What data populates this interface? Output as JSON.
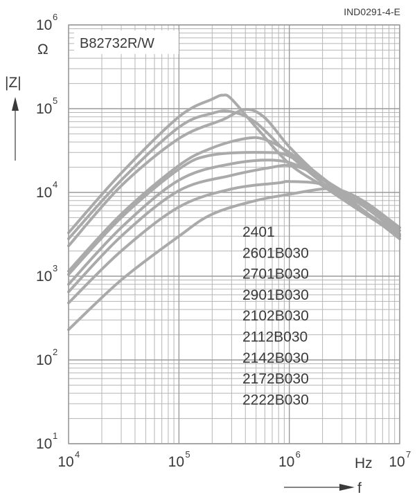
{
  "chart_data": {
    "type": "line",
    "title": "B82732R/W",
    "reference": "IND0291-4-E",
    "x_label": "f",
    "x_unit": "Hz",
    "y_label": "|Z|",
    "y_unit": "Ω",
    "x_scale": "log",
    "y_scale": "log",
    "xlim": [
      10000,
      10000000
    ],
    "ylim": [
      10,
      1000000
    ],
    "grid": true,
    "x_ticks": [
      {
        "base": "10",
        "exp": "4",
        "value": 10000
      },
      {
        "base": "10",
        "exp": "5",
        "value": 100000
      },
      {
        "base": "10",
        "exp": "6",
        "value": 1000000
      },
      {
        "base": "10",
        "exp": "7",
        "value": 10000000
      }
    ],
    "y_ticks": [
      {
        "base": "10",
        "exp": "1",
        "value": 10
      },
      {
        "base": "10",
        "exp": "2",
        "value": 100
      },
      {
        "base": "10",
        "exp": "3",
        "value": 1000
      },
      {
        "base": "10",
        "exp": "4",
        "value": 10000
      },
      {
        "base": "10",
        "exp": "5",
        "value": 100000
      },
      {
        "base": "10",
        "exp": "6",
        "value": 1000000
      }
    ],
    "legend": [
      "2401",
      "2601B030",
      "2701B030",
      "2901B030",
      "2102B030",
      "2112B030",
      "2142B030",
      "2172B030",
      "2222B030"
    ],
    "line_color": "#aaaaaa",
    "grid_color": "#b5b5b5",
    "series": [
      {
        "points": [
          [
            10000,
            3300
          ],
          [
            30000,
            17000
          ],
          [
            100000,
            80000
          ],
          [
            200000,
            130000
          ],
          [
            250000,
            145000
          ],
          [
            300000,
            130000
          ],
          [
            500000,
            60000
          ],
          [
            1000000,
            22000
          ],
          [
            2000000,
            12000
          ],
          [
            4000000,
            6500
          ],
          [
            10000000,
            3000
          ]
        ]
      },
      {
        "points": [
          [
            10000,
            2800
          ],
          [
            30000,
            14000
          ],
          [
            100000,
            60000
          ],
          [
            200000,
            88000
          ],
          [
            300000,
            92000
          ],
          [
            500000,
            68000
          ],
          [
            1000000,
            28000
          ],
          [
            2000000,
            13000
          ],
          [
            4000000,
            6700
          ],
          [
            10000000,
            3000
          ]
        ]
      },
      {
        "points": [
          [
            10000,
            2300
          ],
          [
            30000,
            12000
          ],
          [
            100000,
            44000
          ],
          [
            250000,
            74000
          ],
          [
            400000,
            98000
          ],
          [
            600000,
            78000
          ],
          [
            1000000,
            35000
          ],
          [
            2000000,
            14500
          ],
          [
            4000000,
            7000
          ],
          [
            10000000,
            3100
          ]
        ]
      },
      {
        "points": [
          [
            10000,
            1150
          ],
          [
            30000,
            5500
          ],
          [
            100000,
            21000
          ],
          [
            200000,
            34000
          ],
          [
            400000,
            44000
          ],
          [
            600000,
            43000
          ],
          [
            1000000,
            30000
          ],
          [
            2000000,
            15000
          ],
          [
            4000000,
            7200
          ],
          [
            10000000,
            2800
          ]
        ]
      },
      {
        "points": [
          [
            10000,
            1050
          ],
          [
            30000,
            5000
          ],
          [
            100000,
            19000
          ],
          [
            200000,
            28000
          ],
          [
            600000,
            30000
          ],
          [
            1000000,
            27000
          ],
          [
            2000000,
            14500
          ],
          [
            4000000,
            7200
          ],
          [
            10000000,
            2800
          ]
        ]
      },
      {
        "points": [
          [
            10000,
            800
          ],
          [
            30000,
            3800
          ],
          [
            100000,
            14000
          ],
          [
            300000,
            22000
          ],
          [
            800000,
            24000
          ],
          [
            1500000,
            18000
          ],
          [
            3000000,
            10000
          ],
          [
            5000000,
            6500
          ],
          [
            10000000,
            3200
          ]
        ]
      },
      {
        "points": [
          [
            10000,
            650
          ],
          [
            30000,
            3000
          ],
          [
            100000,
            10500
          ],
          [
            300000,
            16000
          ],
          [
            700000,
            20000
          ],
          [
            1000000,
            21000
          ],
          [
            1500000,
            18000
          ],
          [
            3000000,
            10500
          ],
          [
            5000000,
            7000
          ],
          [
            10000000,
            3500
          ]
        ]
      },
      {
        "points": [
          [
            10000,
            480
          ],
          [
            30000,
            2000
          ],
          [
            100000,
            6700
          ],
          [
            300000,
            11000
          ],
          [
            800000,
            13000
          ],
          [
            1000000,
            13500
          ],
          [
            2000000,
            12500
          ],
          [
            4000000,
            8500
          ],
          [
            10000000,
            3800
          ]
        ]
      },
      {
        "points": [
          [
            10000,
            230
          ],
          [
            30000,
            900
          ],
          [
            100000,
            3000
          ],
          [
            200000,
            5500
          ],
          [
            500000,
            8000
          ],
          [
            1000000,
            9500
          ],
          [
            2000000,
            11000
          ],
          [
            3000000,
            10500
          ],
          [
            5000000,
            7500
          ],
          [
            10000000,
            3800
          ]
        ]
      }
    ]
  }
}
